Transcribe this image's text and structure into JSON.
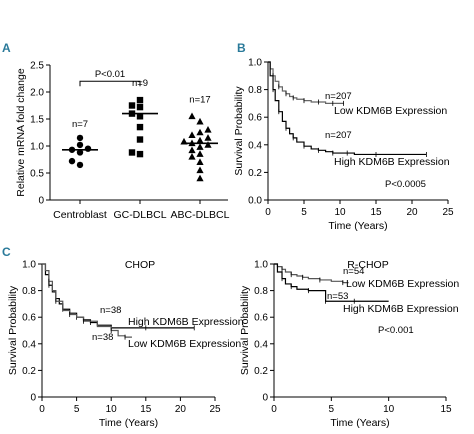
{
  "chart_data": [
    {
      "panel": "A",
      "type": "scatter",
      "categories": [
        "Centroblast",
        "GC-DLBCL",
        "ABC-DLBCL"
      ],
      "ylabel": "Relative mRNA fold change",
      "ylim": [
        0,
        2.5
      ],
      "yticks": [
        "0",
        "0.5",
        "1.0",
        "1.5",
        "2.0",
        "2.5"
      ],
      "groups": [
        {
          "category": "Centroblast",
          "marker": "circle",
          "n_label": "n=7",
          "median": 0.93,
          "values": [
            0.65,
            0.72,
            0.88,
            0.93,
            0.95,
            1.02,
            1.15
          ]
        },
        {
          "category": "GC-DLBCL",
          "marker": "square",
          "n_label": "n=9",
          "median": 1.6,
          "values": [
            0.85,
            0.88,
            1.12,
            1.35,
            1.55,
            1.6,
            1.72,
            1.75,
            1.85
          ]
        },
        {
          "category": "ABC-DLBCL",
          "marker": "triangle",
          "n_label": "n=17",
          "median": 1.05,
          "values": [
            0.4,
            0.55,
            0.7,
            0.8,
            0.85,
            0.92,
            0.98,
            1.02,
            1.05,
            1.08,
            1.1,
            1.15,
            1.2,
            1.25,
            1.3,
            1.45,
            1.55
          ]
        }
      ],
      "annotation": "P<0.01"
    },
    {
      "panel": "B",
      "type": "line",
      "xlabel": "Time (Years)",
      "ylabel": "Survival Probability",
      "xlim": [
        0,
        25
      ],
      "ylim": [
        0,
        1.0
      ],
      "xticks": [
        "0",
        "5",
        "10",
        "15",
        "20",
        "25"
      ],
      "yticks": [
        "0.0",
        "0.2",
        "0.4",
        "0.6",
        "0.8",
        "1.0"
      ],
      "series": [
        {
          "name": "Low KDM6B Expression",
          "n_label": "n=207",
          "x": [
            0,
            0.3,
            0.7,
            1.0,
            1.5,
            2.0,
            2.5,
            3.0,
            3.5,
            4.0,
            5.0,
            6.0,
            7.0,
            8.0,
            9.0,
            10.0,
            10.5
          ],
          "y": [
            1.0,
            0.95,
            0.9,
            0.86,
            0.82,
            0.79,
            0.77,
            0.75,
            0.74,
            0.73,
            0.72,
            0.71,
            0.71,
            0.7,
            0.7,
            0.7,
            0.7
          ]
        },
        {
          "name": "High KDM6B Expression",
          "n_label": "n=207",
          "x": [
            0,
            0.3,
            0.7,
            1.0,
            1.5,
            2.0,
            2.5,
            3.0,
            3.5,
            4.0,
            5.0,
            6.0,
            7.0,
            8.0,
            9.0,
            10.0,
            11.0,
            12.0,
            15.0,
            18.0,
            22.0
          ],
          "y": [
            1.0,
            0.9,
            0.8,
            0.72,
            0.64,
            0.57,
            0.52,
            0.48,
            0.45,
            0.42,
            0.39,
            0.37,
            0.36,
            0.35,
            0.34,
            0.34,
            0.34,
            0.33,
            0.33,
            0.33,
            0.33
          ]
        }
      ],
      "annotation": "P<0.0005"
    },
    {
      "panel": "C",
      "type": "line",
      "title": "CHOP",
      "xlabel": "Time (Years)",
      "ylabel": "Survival Probability",
      "xlim": [
        0,
        25
      ],
      "ylim": [
        0,
        1.0
      ],
      "xticks": [
        "0",
        "5",
        "10",
        "15",
        "20",
        "25"
      ],
      "yticks": [
        "0",
        "0.2",
        "0.4",
        "0.6",
        "0.8",
        "1.0"
      ],
      "series": [
        {
          "name": "High KDM6B Expression",
          "n_label": "n=38",
          "x": [
            0,
            0.5,
            1.0,
            1.5,
            2.0,
            2.5,
            3.0,
            4.0,
            5.0,
            6.0,
            7.0,
            8.0,
            10.0,
            12.0,
            15.0,
            20.0,
            22.0
          ],
          "y": [
            1.0,
            0.92,
            0.84,
            0.79,
            0.74,
            0.7,
            0.66,
            0.63,
            0.6,
            0.58,
            0.56,
            0.54,
            0.52,
            0.52,
            0.52,
            0.52,
            0.52
          ]
        },
        {
          "name": "Low KDM6B Expression",
          "n_label": "n=38",
          "x": [
            0,
            0.5,
            1.0,
            1.5,
            2.0,
            3.0,
            4.0,
            5.0,
            6.0,
            8.0,
            10.0,
            11.0,
            12.0,
            13.0
          ],
          "y": [
            1.0,
            0.95,
            0.87,
            0.8,
            0.72,
            0.65,
            0.62,
            0.6,
            0.57,
            0.53,
            0.5,
            0.46,
            0.45,
            0.45
          ]
        }
      ]
    },
    {
      "panel": "C-right",
      "type": "line",
      "title": "R-CHOP",
      "xlabel": "Time (Years)",
      "ylabel": "Survival Probability",
      "xlim": [
        0,
        15
      ],
      "ylim": [
        0,
        1.0
      ],
      "xticks": [
        "0",
        "5",
        "10",
        "15"
      ],
      "yticks": [
        "0",
        "0.2",
        "0.4",
        "0.6",
        "0.8",
        "1.0"
      ],
      "series": [
        {
          "name": "Low KDM6B Expression",
          "n_label": "n=54",
          "x": [
            0,
            0.3,
            0.7,
            1.0,
            1.5,
            2.0,
            2.5,
            3.0,
            4.0,
            5.0,
            6.0,
            6.5
          ],
          "y": [
            1.0,
            0.98,
            0.96,
            0.94,
            0.92,
            0.91,
            0.9,
            0.89,
            0.88,
            0.87,
            0.86,
            0.86
          ]
        },
        {
          "name": "High KDM6B Expression",
          "n_label": "n=53",
          "x": [
            0,
            0.3,
            0.7,
            1.0,
            1.5,
            2.0,
            3.0,
            4.0,
            4.5,
            5.0,
            7.0,
            10.0
          ],
          "y": [
            1.0,
            0.94,
            0.89,
            0.85,
            0.83,
            0.81,
            0.8,
            0.8,
            0.72,
            0.72,
            0.72,
            0.72
          ]
        }
      ],
      "annotation": "P<0.001"
    }
  ],
  "panel_letters": {
    "a": "A",
    "b": "B",
    "c": "C"
  },
  "colors": {
    "axis": "#000000",
    "panel_letter": "#2a7a9a",
    "curve_low": "#555555",
    "curve_high": "#000000"
  }
}
